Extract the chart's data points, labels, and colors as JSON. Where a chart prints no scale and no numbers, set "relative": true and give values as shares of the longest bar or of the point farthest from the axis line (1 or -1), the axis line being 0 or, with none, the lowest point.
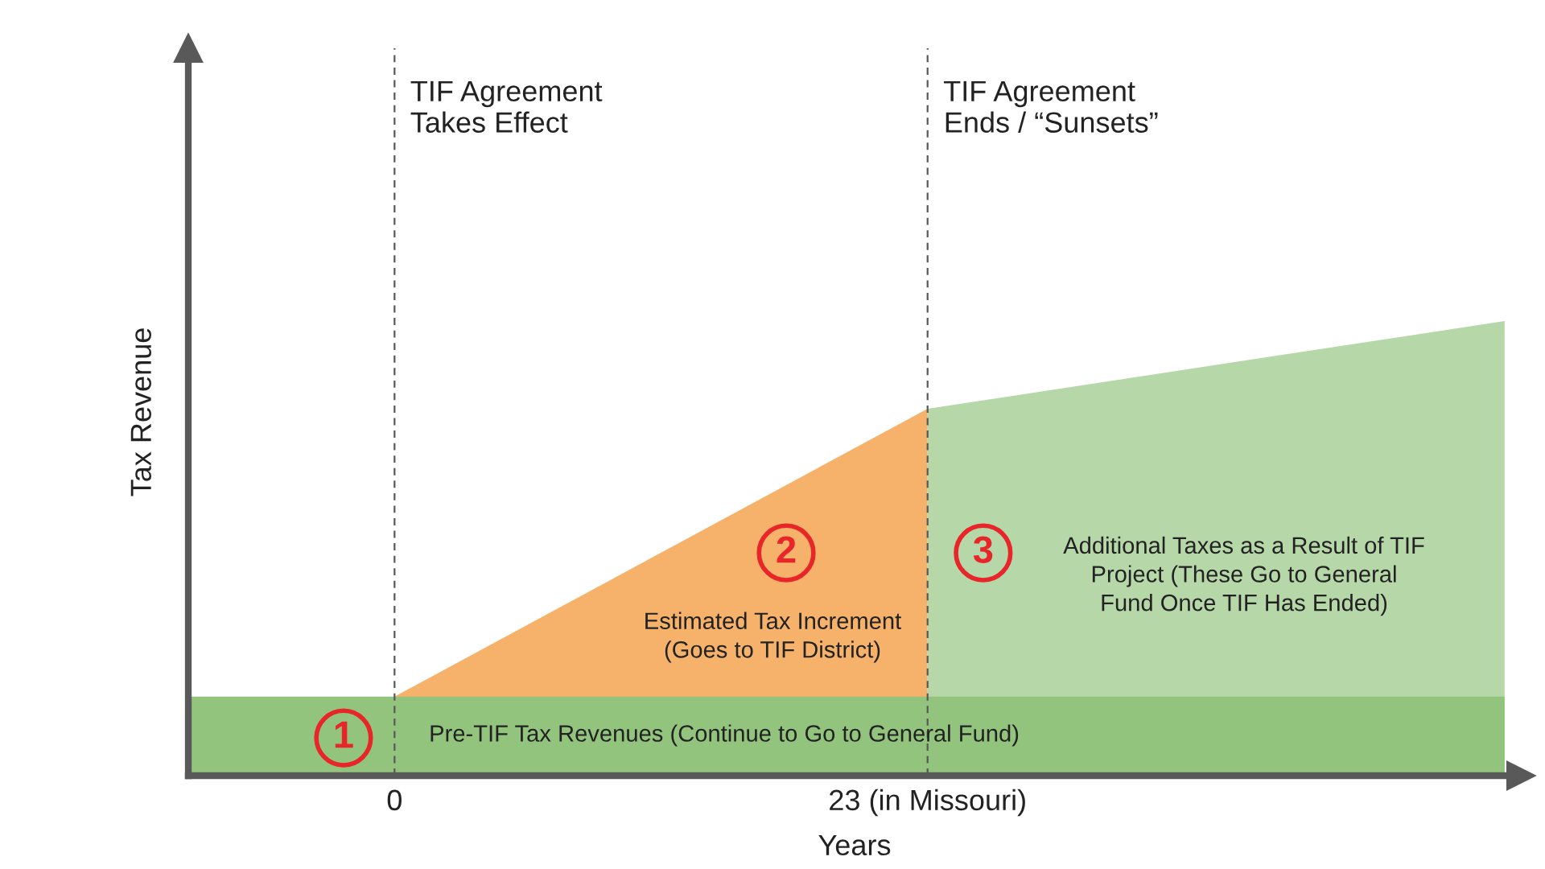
{
  "chart_data": {
    "type": "area",
    "relative": true,
    "xlabel": "Years",
    "ylabel": "Tax Revenue",
    "xlim": [
      -8.9,
      48.6
    ],
    "xticks": [
      0,
      {
        "value": 23,
        "label": "23 (in Missouri)"
      }
    ],
    "series": [
      {
        "color": "#f6b26b",
        "x": [
          0,
          23
        ],
        "values": [
          0.174,
          0.807
        ]
      },
      {
        "color": "#b6d7a8",
        "x": [
          23,
          47.9
        ],
        "values": [
          0.807,
          1.0
        ]
      },
      {
        "color": "#93c47d",
        "x": [
          -8.9,
          47.9
        ],
        "values": [
          0.174,
          0.174
        ]
      }
    ],
    "ref_lines": [
      {
        "axis": "x",
        "value": 0,
        "label": "TIF Agreement\nTakes Effect",
        "color": "#595959",
        "line_style": "dashed"
      },
      {
        "axis": "x",
        "value": 23,
        "label": "TIF Agreement\nEnds / “Sunsets”",
        "color": "#595959",
        "line_style": "dashed"
      }
    ],
    "annotations": [
      {
        "text": "1",
        "x": -2.2,
        "y": 0.083
      },
      "Pre-TIF Tax Revenues (Continue to Go to General Fund)",
      {
        "text": "2",
        "x": 16.9,
        "y": 0.49
      },
      "Estimated Tax Increment\n(Goes to TIF District)",
      {
        "text": "3",
        "x": 25.4,
        "y": 0.49
      },
      "Additional Taxes as a Result of TIF\nProject (These Go to General\nFund Once TIF Has Ended)"
    ],
    "grid": false,
    "legend": false
  }
}
